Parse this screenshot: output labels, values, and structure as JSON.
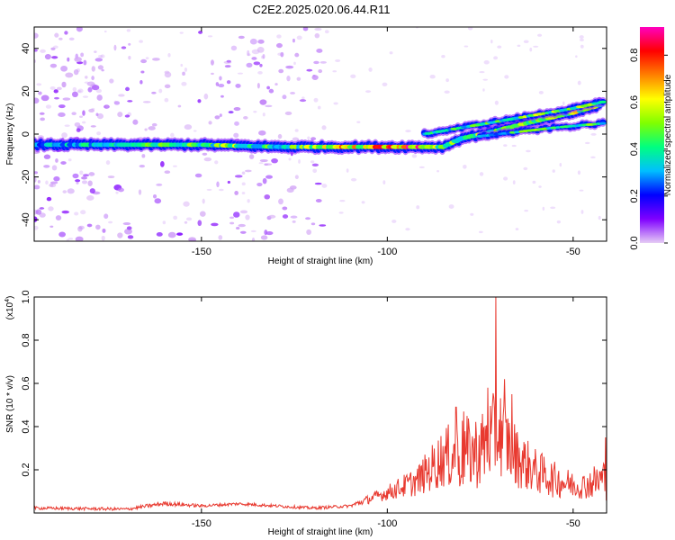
{
  "title": "C2E2.2025.020.06.44.R11",
  "chart_data": [
    {
      "type": "heatmap",
      "xlabel": "Height of straight line (km)",
      "ylabel": "Frequency (Hz)",
      "xlim": [
        -195,
        -41
      ],
      "ylim": [
        -50,
        50
      ],
      "x_ticks": [
        -150,
        -100,
        -50
      ],
      "x_tick_labels": [
        "-150",
        "-100",
        "-50"
      ],
      "y_ticks": [
        -40,
        -20,
        0,
        20,
        40
      ],
      "y_tick_labels": [
        "-40",
        "-20",
        "0",
        "20",
        "40"
      ],
      "colorbar": {
        "label": "Normalized spectral amplitude",
        "range": [
          0,
          0.92
        ],
        "ticks": [
          0,
          0.2,
          0.4,
          0.6,
          0.8
        ],
        "tick_labels": [
          "0.0",
          "0.2",
          "0.4",
          "0.6",
          "0.8"
        ],
        "colors": [
          "#e6ccf5",
          "#7f00ff",
          "#0000ff",
          "#00bfff",
          "#00ff80",
          "#80ff00",
          "#ffff00",
          "#ff8000",
          "#ff0000",
          "#ff00bf"
        ]
      },
      "ridge": [
        {
          "x": -195,
          "y": -5,
          "amp": 0.35
        },
        {
          "x": -180,
          "y": -5,
          "amp": 0.38
        },
        {
          "x": -165,
          "y": -5,
          "amp": 0.45
        },
        {
          "x": -150,
          "y": -5,
          "amp": 0.5
        },
        {
          "x": -140,
          "y": -5.5,
          "amp": 0.55
        },
        {
          "x": -128,
          "y": -6,
          "amp": 0.45
        },
        {
          "x": -120,
          "y": -6,
          "amp": 0.6
        },
        {
          "x": -110,
          "y": -6,
          "amp": 0.7
        },
        {
          "x": -100,
          "y": -6,
          "amp": 0.78
        },
        {
          "x": -92,
          "y": -6,
          "amp": 0.85
        },
        {
          "x": -85,
          "y": -6,
          "amp": 0.55
        },
        {
          "x": -80,
          "y": -2,
          "amp": 0.5
        },
        {
          "x": -72,
          "y": 1,
          "amp": 0.55
        },
        {
          "x": -65,
          "y": 4,
          "amp": 0.6
        },
        {
          "x": -58,
          "y": 7,
          "amp": 0.55
        },
        {
          "x": -50,
          "y": 10,
          "amp": 0.6
        },
        {
          "x": -42,
          "y": 14,
          "amp": 0.55
        }
      ],
      "upper_branch": [
        {
          "x": -90,
          "y": 0,
          "amp": 0.4
        },
        {
          "x": -80,
          "y": 3,
          "amp": 0.45
        },
        {
          "x": -70,
          "y": 6,
          "amp": 0.5
        },
        {
          "x": -60,
          "y": 9,
          "amp": 0.55
        },
        {
          "x": -50,
          "y": 12,
          "amp": 0.5
        },
        {
          "x": -42,
          "y": 15,
          "amp": 0.55
        }
      ],
      "lower_branch": [
        {
          "x": -75,
          "y": -1,
          "amp": 0.4
        },
        {
          "x": -65,
          "y": 1,
          "amp": 0.45
        },
        {
          "x": -55,
          "y": 3,
          "amp": 0.5
        },
        {
          "x": -42,
          "y": 5,
          "amp": 0.5
        }
      ],
      "noise_bands": [
        {
          "x_from": -195,
          "x_to": -178,
          "density": 0.9
        },
        {
          "x_from": -178,
          "x_to": -165,
          "density": 0.45
        },
        {
          "x_from": -165,
          "x_to": -145,
          "density": 0.3
        },
        {
          "x_from": -145,
          "x_to": -128,
          "density": 0.6
        },
        {
          "x_from": -128,
          "x_to": -117,
          "density": 0.5
        }
      ]
    },
    {
      "type": "line",
      "xlabel": "Height of straight line (km)",
      "ylabel": "SNR (10 * v/v)",
      "y_multiplier_label": "(x10",
      "y_multiplier_exp": "4",
      "xlim": [
        -195,
        -41
      ],
      "ylim": [
        0,
        1.0
      ],
      "x_ticks": [
        -150,
        -100,
        -50
      ],
      "x_tick_labels": [
        "-150",
        "-100",
        "-50"
      ],
      "y_ticks": [
        0.2,
        0.4,
        0.6,
        0.8,
        1.0
      ],
      "y_tick_labels": [
        "0.2",
        "0.4",
        "0.6",
        "0.8",
        "1.0"
      ],
      "color": "#e8392f",
      "envelope": [
        {
          "x": -195,
          "base": 0.02,
          "amp": 0.01
        },
        {
          "x": -170,
          "base": 0.015,
          "amp": 0.01
        },
        {
          "x": -160,
          "base": 0.04,
          "amp": 0.015
        },
        {
          "x": -150,
          "base": 0.03,
          "amp": 0.01
        },
        {
          "x": -140,
          "base": 0.04,
          "amp": 0.01
        },
        {
          "x": -120,
          "base": 0.02,
          "amp": 0.01
        },
        {
          "x": -110,
          "base": 0.03,
          "amp": 0.01
        },
        {
          "x": -100,
          "base": 0.08,
          "amp": 0.05
        },
        {
          "x": -92,
          "base": 0.12,
          "amp": 0.1
        },
        {
          "x": -85,
          "base": 0.2,
          "amp": 0.2
        },
        {
          "x": -80,
          "base": 0.2,
          "amp": 0.25
        },
        {
          "x": -75,
          "base": 0.22,
          "amp": 0.25
        },
        {
          "x": -70,
          "base": 0.3,
          "amp": 0.3
        },
        {
          "x": -65,
          "base": 0.2,
          "amp": 0.2
        },
        {
          "x": -60,
          "base": 0.15,
          "amp": 0.15
        },
        {
          "x": -55,
          "base": 0.12,
          "amp": 0.12
        },
        {
          "x": -48,
          "base": 0.1,
          "amp": 0.08
        },
        {
          "x": -41,
          "base": 0.12,
          "amp": 0.15
        }
      ],
      "peaks": [
        {
          "x": -70.8,
          "y": 1.0
        },
        {
          "x": -68.5,
          "y": 0.62
        },
        {
          "x": -66.5,
          "y": 0.55
        },
        {
          "x": -73,
          "y": 0.58
        },
        {
          "x": -81.5,
          "y": 0.49
        },
        {
          "x": -79.5,
          "y": 0.47
        },
        {
          "x": -41.3,
          "y": 0.35
        }
      ]
    }
  ]
}
